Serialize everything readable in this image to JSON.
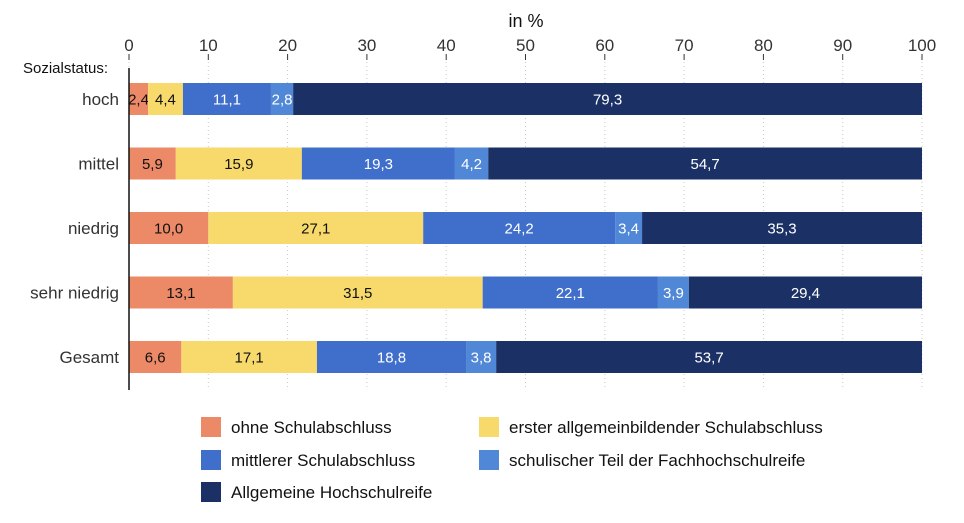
{
  "chart_data": {
    "type": "bar",
    "orientation": "horizontal",
    "stacked": true,
    "xlabel": "in %",
    "ylabel": "Sozialstatus:",
    "xlim": [
      0,
      100
    ],
    "xticks": [
      0,
      10,
      20,
      30,
      40,
      50,
      60,
      70,
      80,
      90,
      100
    ],
    "grid": "vertical dotted",
    "legend_position": "bottom",
    "categories": [
      "hoch",
      "mittel",
      "niedrig",
      "sehr niedrig",
      "Gesamt"
    ],
    "series": [
      {
        "name": "ohne Schulabschluss",
        "color": "#ec8a67",
        "label_color": "#111111",
        "values": [
          2.4,
          5.9,
          10.0,
          13.1,
          6.6
        ],
        "labels": [
          "2,4",
          "5,9",
          "10,0",
          "13,1",
          "6,6"
        ]
      },
      {
        "name": "erster allgemeinbildender Schulabschluss",
        "color": "#f7d96c",
        "label_color": "#111111",
        "values": [
          4.4,
          15.9,
          27.1,
          31.5,
          17.1
        ],
        "labels": [
          "4,4",
          "15,9",
          "27,1",
          "31,5",
          "17,1"
        ]
      },
      {
        "name": "mittlerer Schulabschluss",
        "color": "#3f6fcb",
        "label_color": "#ffffff",
        "values": [
          11.1,
          19.3,
          24.2,
          22.1,
          18.8
        ],
        "labels": [
          "11,1",
          "19,3",
          "24,2",
          "22,1",
          "18,8"
        ]
      },
      {
        "name": "schulischer Teil der Fachhochschulreife",
        "color": "#5087d6",
        "label_color": "#ffffff",
        "values": [
          2.8,
          4.2,
          3.4,
          3.9,
          3.8
        ],
        "labels": [
          "2,8",
          "4,2",
          "3,4",
          "3,9",
          "3,8"
        ]
      },
      {
        "name": "Allgemeine Hochschulreife",
        "color": "#1b3166",
        "label_color": "#ffffff",
        "values": [
          79.3,
          54.7,
          35.3,
          29.4,
          53.7
        ],
        "labels": [
          "79,3",
          "54,7",
          "35,3",
          "29,4",
          "53,7"
        ]
      }
    ]
  }
}
